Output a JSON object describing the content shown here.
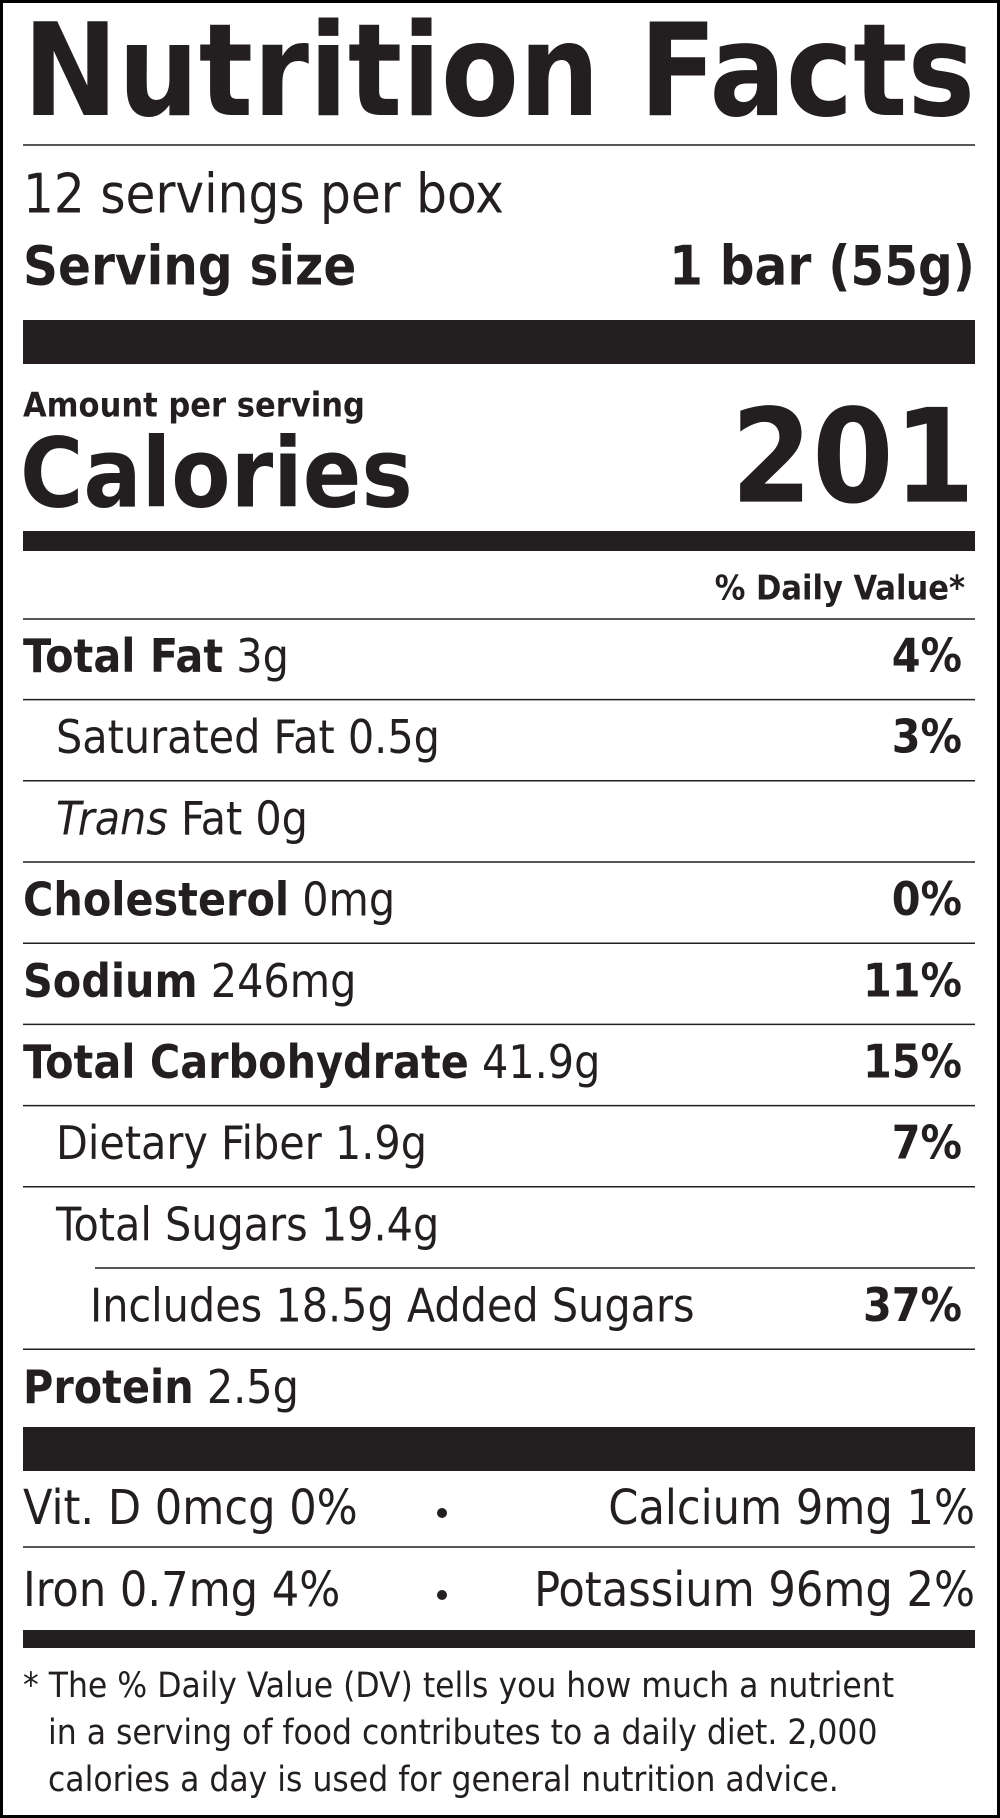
{
  "header": {
    "title": "Nutrition Facts",
    "servings": "12 servings per box",
    "serving_size_label": "Serving size",
    "serving_size": "1 bar (55g)"
  },
  "calories": {
    "caption": "Amount per serving",
    "label": "Calories",
    "value": "201"
  },
  "daily_value_header": "% Daily Value*",
  "nutrients": [
    {
      "name": "Total Fat",
      "amount": "3g",
      "dv": "4%"
    },
    {
      "name": "Saturated Fat",
      "amount": "0.5g",
      "dv": "3%"
    },
    {
      "name_italic": "Trans",
      "name": "Fat",
      "amount": "0g"
    },
    {
      "name": "Cholesterol",
      "amount": "0mg",
      "dv": "0%"
    },
    {
      "name": "Sodium",
      "amount": "246mg",
      "dv": "11%"
    },
    {
      "name": "Total Carbohydrate",
      "amount": "41.9g",
      "dv": "15%"
    },
    {
      "name": "Dietary Fiber",
      "amount": "1.9g",
      "dv": "7%"
    },
    {
      "name": "Total Sugars",
      "amount": "19.4g"
    },
    {
      "name": "Includes 18.5g Added Sugars",
      "dv": "37%"
    },
    {
      "name": "Protein",
      "amount": "2.5g"
    }
  ],
  "vitamins": [
    [
      "Vit. D 0mcg 0%",
      "Calcium 9mg 1%"
    ],
    [
      "Iron 0.7mg 4%",
      "Potassium 96mg 2%"
    ]
  ],
  "footnote": [
    "* The % Daily Value (DV) tells you how much a nutrient",
    "in a serving of food contributes to a daily diet. 2,000",
    "calories a day is used for general nutrition advice."
  ]
}
